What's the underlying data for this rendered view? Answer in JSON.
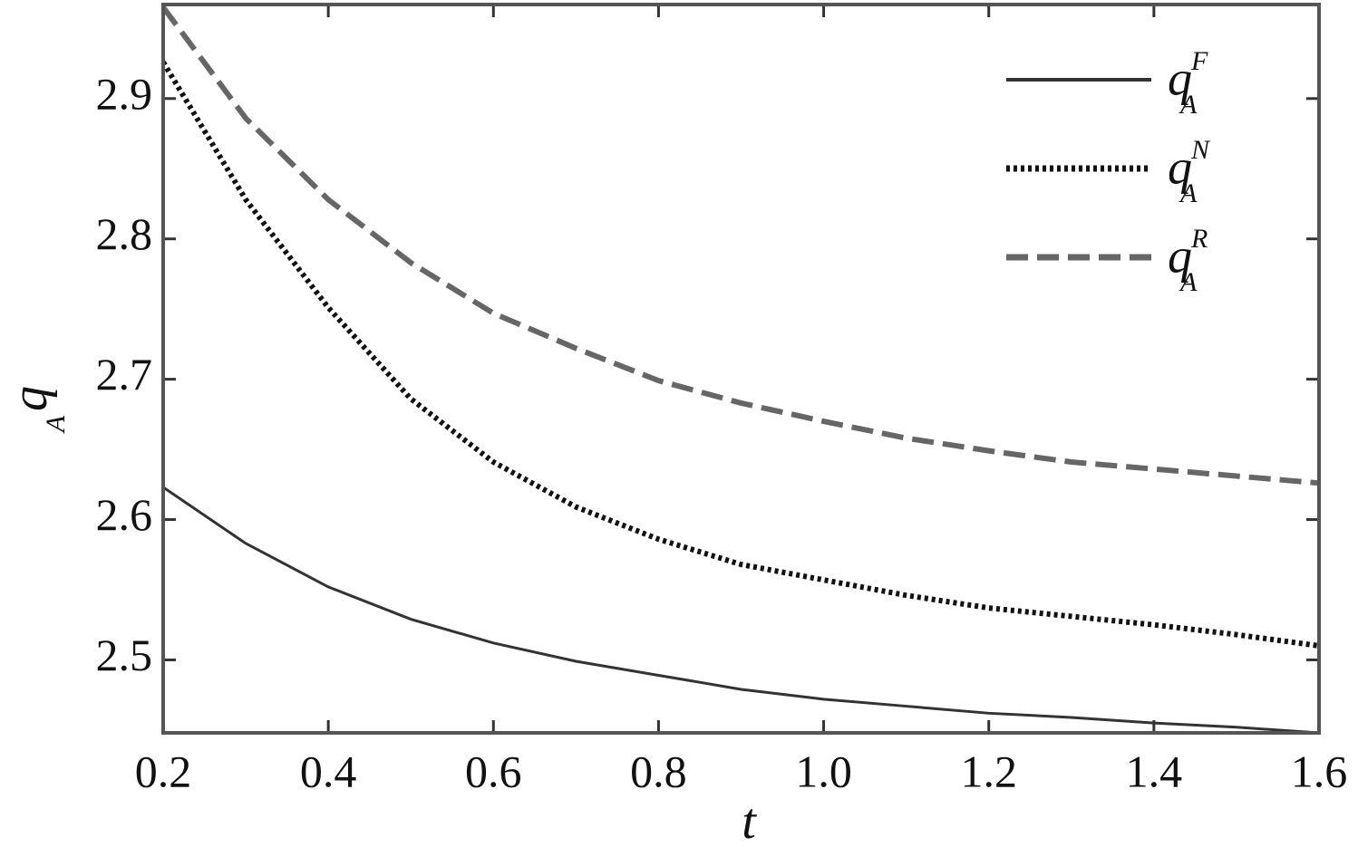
{
  "chart_data": {
    "type": "line",
    "x_label": "t",
    "y_label": {
      "symbol": "q",
      "subscript": "A"
    },
    "x": [
      0.2,
      0.3,
      0.4,
      0.5,
      0.6,
      0.7,
      0.8,
      0.9,
      1.0,
      1.1,
      1.2,
      1.3,
      1.4,
      1.5,
      1.6
    ],
    "series": [
      {
        "name": "q",
        "subscript": "A",
        "superscript": "F",
        "color": "#333333",
        "style": "solid",
        "values": [
          2.623,
          2.583,
          2.552,
          2.529,
          2.512,
          2.499,
          2.489,
          2.479,
          2.472,
          2.467,
          2.462,
          2.459,
          2.455,
          2.452,
          2.448
        ]
      },
      {
        "name": "q",
        "subscript": "A",
        "superscript": "N",
        "color": "#111111",
        "style": "dotted",
        "values": [
          2.926,
          2.828,
          2.751,
          2.686,
          2.641,
          2.609,
          2.586,
          2.568,
          2.557,
          2.546,
          2.537,
          2.531,
          2.525,
          2.518,
          2.51
        ]
      },
      {
        "name": "q",
        "subscript": "A",
        "superscript": "R",
        "color": "#666666",
        "style": "dashed",
        "values": [
          2.965,
          2.886,
          2.828,
          2.783,
          2.747,
          2.722,
          2.699,
          2.683,
          2.67,
          2.658,
          2.649,
          2.641,
          2.636,
          2.631,
          2.626
        ]
      }
    ],
    "xlim": [
      0.2,
      1.6
    ],
    "ylim": [
      2.448,
      2.967
    ],
    "xticks": [
      0.2,
      0.4,
      0.6,
      0.8,
      {
        "value": 1,
        "label": "1.0"
      },
      1.2,
      1.4,
      1.6
    ],
    "yticks": [
      2.5,
      2.6,
      2.7,
      2.8,
      2.9
    ],
    "legend": "upper right"
  }
}
